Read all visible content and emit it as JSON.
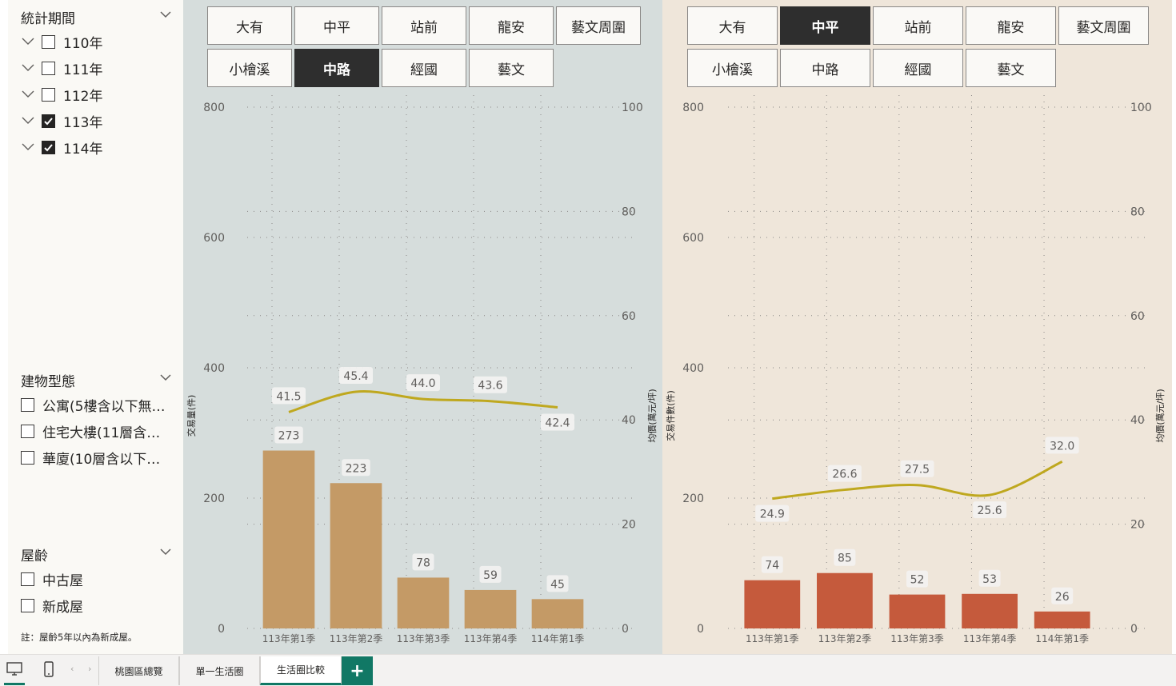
{
  "sidebar": {
    "period": {
      "title": "統計期間",
      "items": [
        {
          "label": "110年",
          "checked": false
        },
        {
          "label": "111年",
          "checked": false
        },
        {
          "label": "112年",
          "checked": false
        },
        {
          "label": "113年",
          "checked": true
        },
        {
          "label": "114年",
          "checked": true
        }
      ]
    },
    "building": {
      "title": "建物型態",
      "items": [
        {
          "label": "公寓(5樓含以下無…",
          "checked": false
        },
        {
          "label": "住宅大樓(11層含…",
          "checked": false
        },
        {
          "label": "華廈(10層含以下…",
          "checked": false
        }
      ]
    },
    "age": {
      "title": "屋齡",
      "items": [
        {
          "label": "中古屋",
          "checked": false
        },
        {
          "label": "新成屋",
          "checked": false
        }
      ]
    },
    "note": "註：屋齡5年以內為新成屋。"
  },
  "left_panel": {
    "tiles": [
      "大有",
      "中平",
      "站前",
      "龍安",
      "藝文周圍",
      "小檜溪",
      "中路",
      "經國",
      "藝文"
    ],
    "selected": "中路"
  },
  "right_panel": {
    "tiles": [
      "大有",
      "中平",
      "站前",
      "龍安",
      "藝文周圍",
      "小檜溪",
      "中路",
      "經國",
      "藝文"
    ],
    "selected": "中平"
  },
  "chart_data": [
    {
      "type": "bar+line",
      "categories": [
        "113年第1季",
        "113年第2季",
        "113年第3季",
        "113年第4季",
        "114年第1季"
      ],
      "bar_series": {
        "name": "交易量(件)",
        "values": [
          273,
          223,
          78,
          59,
          45
        ],
        "color": "#c49a66"
      },
      "line_series": {
        "name": "均價(萬元/坪)",
        "values": [
          41.5,
          45.4,
          44.0,
          43.6,
          42.4
        ],
        "color": "#bfa81f"
      },
      "ylabel_left": "交易量(件)",
      "ylabel_right": "均價(萬元/坪)",
      "ylim_left": [
        0,
        800
      ],
      "ylim_right": [
        0,
        100
      ],
      "yticks_left": [
        0,
        200,
        400,
        600,
        800
      ],
      "yticks_right": [
        0,
        20,
        40,
        60,
        80,
        100
      ],
      "grid": true,
      "background": "#d6dddc"
    },
    {
      "type": "bar+line",
      "categories": [
        "113年第1季",
        "113年第2季",
        "113年第3季",
        "113年第4季",
        "114年第1季"
      ],
      "bar_series": {
        "name": "交易件數(件)",
        "values": [
          74,
          85,
          52,
          53,
          26
        ],
        "color": "#c55a3c"
      },
      "line_series": {
        "name": "均價(萬元/坪)",
        "values": [
          24.9,
          26.6,
          27.5,
          25.6,
          32.0
        ],
        "color": "#bfa81f"
      },
      "ylabel_left": "交易件數(件)",
      "ylabel_right": "均價(萬元/坪)",
      "ylim_left": [
        0,
        800
      ],
      "ylim_right": [
        0,
        100
      ],
      "yticks_left": [
        0,
        200,
        400,
        600,
        800
      ],
      "yticks_right": [
        0,
        20,
        40,
        60,
        80,
        100
      ],
      "grid": true,
      "background": "#efe6da"
    }
  ],
  "tabs": {
    "pages": [
      "桃園區總覽",
      "單一生活圈",
      "生活圈比較"
    ],
    "active": "生活圈比較",
    "add_label": "+"
  }
}
